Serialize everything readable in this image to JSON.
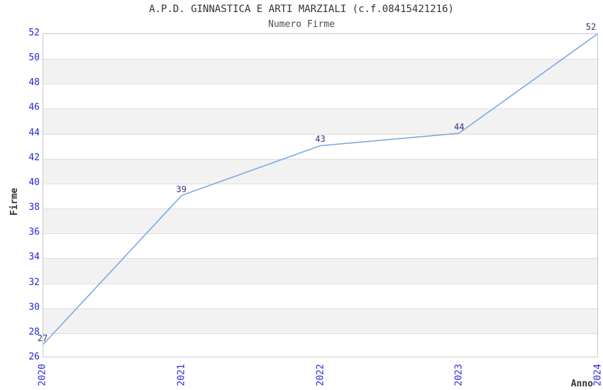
{
  "chart_data": {
    "type": "line",
    "title": "A.P.D. GINNASTICA E ARTI MARZIALI (c.f.08415421216)",
    "subtitle": "Numero Firme",
    "xlabel": "Anno",
    "ylabel": "Firme",
    "categories": [
      "2020",
      "2021",
      "2022",
      "2023",
      "2024"
    ],
    "values": [
      27,
      39,
      43,
      44,
      52
    ],
    "data_labels": [
      "27",
      "39",
      "43",
      "44",
      "52"
    ],
    "ylim": [
      26,
      52
    ],
    "ytick_step": 2,
    "grid": true,
    "alternating_bands": true,
    "legend": "none",
    "colors": {
      "line": "#7aa9e2",
      "tick_label": "#2626d9",
      "data_label": "#333377",
      "band": "#f2f2f2",
      "gridline": "#dedede",
      "plot_border": "#c8c8c8",
      "title": "#333333",
      "subtitle": "#4d4d4d",
      "axis_title": "#333333",
      "background": "#ffffff"
    }
  }
}
